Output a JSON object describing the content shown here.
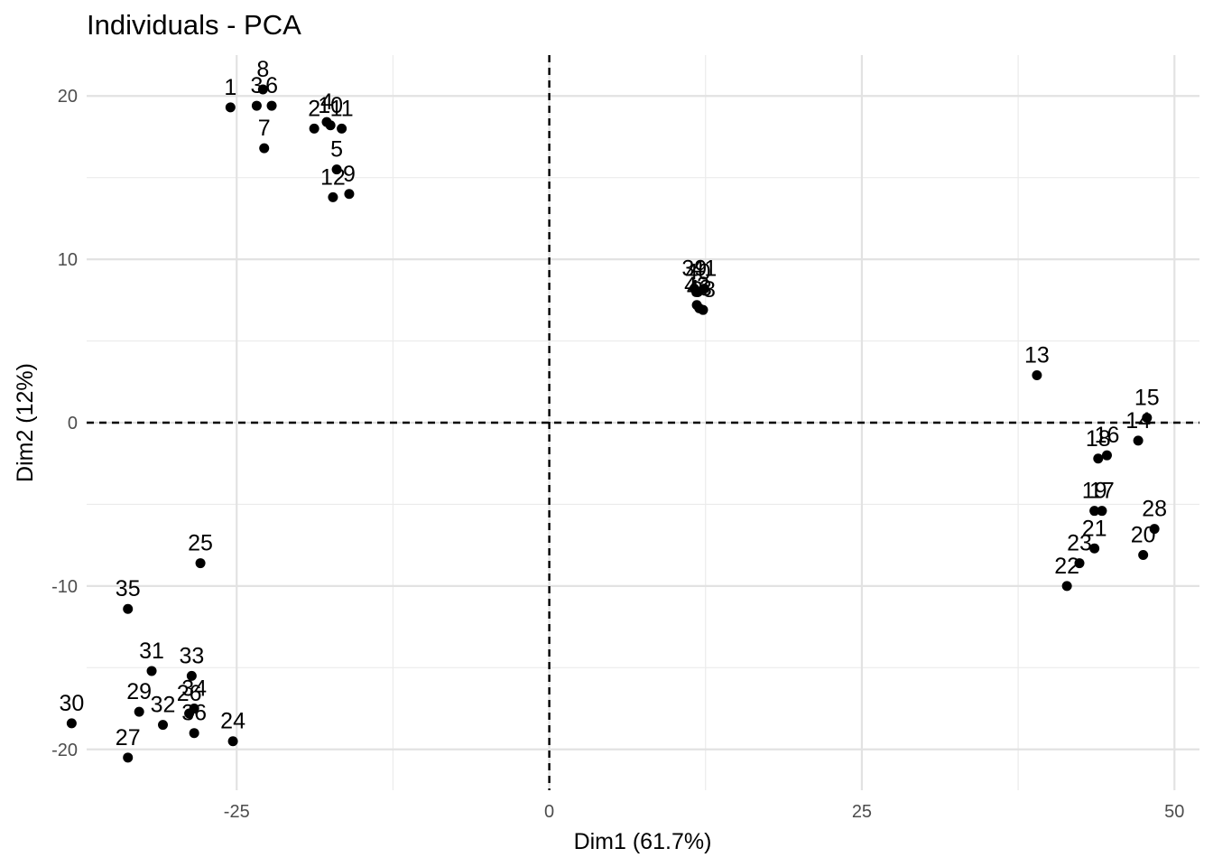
{
  "chart_data": {
    "type": "scatter",
    "title": "Individuals - PCA",
    "xlabel": "Dim1 (61.7%)",
    "ylabel": "Dim2 (12%)",
    "xlim": [
      -37,
      52
    ],
    "ylim": [
      -22.5,
      22.5
    ],
    "xticks": [
      -25,
      0,
      25,
      50
    ],
    "yticks": [
      -20,
      -10,
      0,
      10,
      20
    ],
    "xtick_labels": [
      "-25",
      "0",
      "25",
      "50"
    ],
    "ytick_labels": [
      "-20",
      "-10",
      "0",
      "10",
      "20"
    ],
    "grid": true,
    "reference_lines": {
      "x": 0,
      "y": 0,
      "style": "dashed"
    },
    "point_color": "#000000",
    "points": [
      {
        "label": "1",
        "x": -25.5,
        "y": 19.3
      },
      {
        "label": "3",
        "x": -23.4,
        "y": 19.4
      },
      {
        "label": "6",
        "x": -22.2,
        "y": 19.4
      },
      {
        "label": "8",
        "x": -22.9,
        "y": 20.4
      },
      {
        "label": "7",
        "x": -22.8,
        "y": 16.8
      },
      {
        "label": "2",
        "x": -18.8,
        "y": 18.0
      },
      {
        "label": "4",
        "x": -17.8,
        "y": 18.4
      },
      {
        "label": "10",
        "x": -17.5,
        "y": 18.2
      },
      {
        "label": "11",
        "x": -16.6,
        "y": 18.0
      },
      {
        "label": "5",
        "x": -17.0,
        "y": 15.5
      },
      {
        "label": "12",
        "x": -17.3,
        "y": 13.8
      },
      {
        "label": "9",
        "x": -16.0,
        "y": 14.0
      },
      {
        "label": "39",
        "x": 11.6,
        "y": 8.2
      },
      {
        "label": "40",
        "x": 11.9,
        "y": 8.0
      },
      {
        "label": "41",
        "x": 12.4,
        "y": 8.2
      },
      {
        "label": "42",
        "x": 11.8,
        "y": 7.2
      },
      {
        "label": "43",
        "x": 12.0,
        "y": 7.0
      },
      {
        "label": "38",
        "x": 12.3,
        "y": 6.9
      },
      {
        "label": "13",
        "x": 39.0,
        "y": 2.9
      },
      {
        "label": "15",
        "x": 47.8,
        "y": 0.3
      },
      {
        "label": "14",
        "x": 47.1,
        "y": -1.1
      },
      {
        "label": "18",
        "x": 43.9,
        "y": -2.2
      },
      {
        "label": "16",
        "x": 44.6,
        "y": -2.0
      },
      {
        "label": "19",
        "x": 43.6,
        "y": -5.4
      },
      {
        "label": "17",
        "x": 44.2,
        "y": -5.4
      },
      {
        "label": "28",
        "x": 48.4,
        "y": -6.5
      },
      {
        "label": "20",
        "x": 47.5,
        "y": -8.1
      },
      {
        "label": "21",
        "x": 43.6,
        "y": -7.7
      },
      {
        "label": "23",
        "x": 42.4,
        "y": -8.6
      },
      {
        "label": "22",
        "x": 41.4,
        "y": -10.0
      },
      {
        "label": "25",
        "x": -27.9,
        "y": -8.6
      },
      {
        "label": "35",
        "x": -33.7,
        "y": -11.4
      },
      {
        "label": "31",
        "x": -31.8,
        "y": -15.2
      },
      {
        "label": "33",
        "x": -28.6,
        "y": -15.5
      },
      {
        "label": "34",
        "x": -28.4,
        "y": -17.5
      },
      {
        "label": "26",
        "x": -28.8,
        "y": -17.8
      },
      {
        "label": "36",
        "x": -28.4,
        "y": -19.0
      },
      {
        "label": "29",
        "x": -32.8,
        "y": -17.7
      },
      {
        "label": "32",
        "x": -30.9,
        "y": -18.5
      },
      {
        "label": "30",
        "x": -38.2,
        "y": -18.4
      },
      {
        "label": "27",
        "x": -33.7,
        "y": -20.5
      },
      {
        "label": "24",
        "x": -25.3,
        "y": -19.5
      }
    ]
  }
}
